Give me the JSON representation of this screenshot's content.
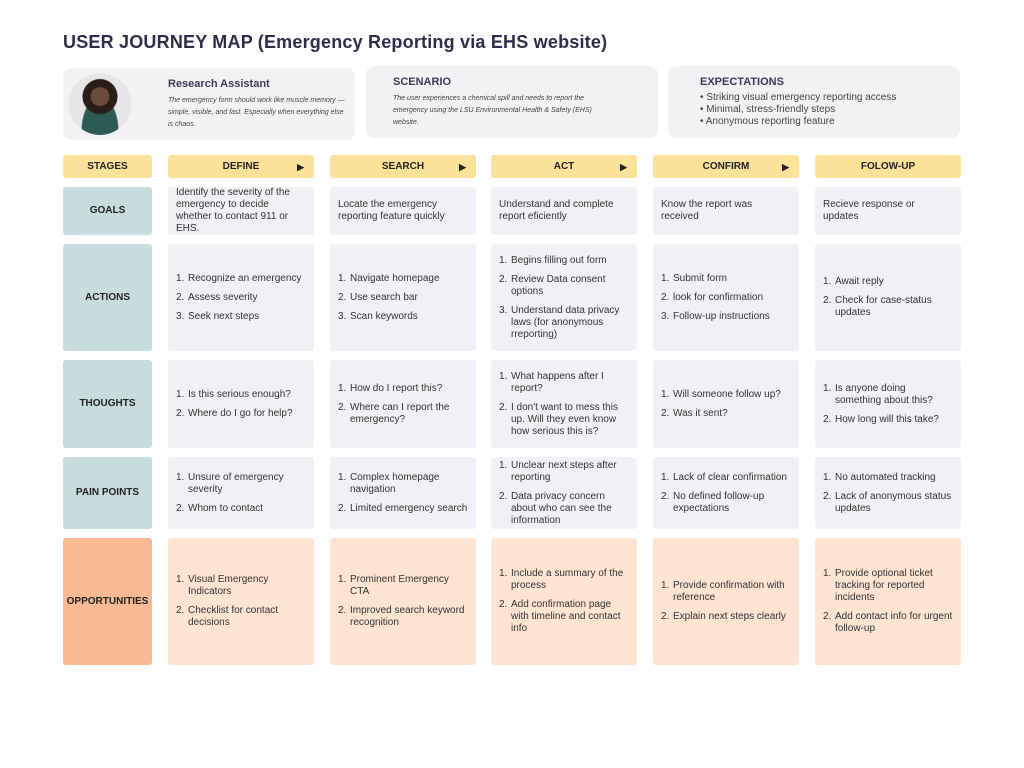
{
  "title": "USER JOURNEY MAP (Emergency Reporting via EHS website)",
  "persona": {
    "name": "Research Assistant",
    "quote": "The emergency form should work like muscle memory — simple, visible, and fast. Especially when everything else is chaos."
  },
  "scenario": {
    "heading": "SCENARIO",
    "text": "The user experiences a chemical spill and needs to report the emergency using the LSU Environmental Health & Safety (EHS) website."
  },
  "expectations": {
    "heading": "EXPECTATIONS",
    "items": [
      "Striking visual emergency reporting access",
      "Minimal, stress-friendly steps",
      "Anonymous reporting feature"
    ]
  },
  "stages_label": "STAGES",
  "stages": [
    {
      "label": "DEFINE",
      "arrow": true
    },
    {
      "label": "SEARCH",
      "arrow": true
    },
    {
      "label": "ACT",
      "arrow": true
    },
    {
      "label": "CONFIRM",
      "arrow": true
    },
    {
      "label": "FOLOW-UP",
      "arrow": false
    }
  ],
  "rows": [
    {
      "label": "GOALS",
      "type": "text",
      "cells": [
        "Identify the severity of the emergency to decide whether to contact 911 or EHS.",
        "Locate the emergency reporting feature quickly",
        "Understand and complete report eficiently",
        "Know the report was received",
        "Recieve response or updates"
      ]
    },
    {
      "label": "ACTIONS",
      "type": "list",
      "cells": [
        [
          "Recognize an emergency",
          "Assess severity",
          "Seek next steps"
        ],
        [
          "Navigate homepage",
          "Use search bar",
          "Scan keywords"
        ],
        [
          "Begins filling out form",
          "Review Data consent options",
          "Understand data privacy laws (for anonymous rreporting)"
        ],
        [
          "Submit form",
          "look for confirmation",
          "Follow-up instructions"
        ],
        [
          "Await reply",
          "Check for case-status updates"
        ]
      ]
    },
    {
      "label": "THOUGHTS",
      "type": "list",
      "cells": [
        [
          "Is this serious enough?",
          "Where do I go for help?"
        ],
        [
          "How do I report this?",
          "Where can I report the emergency?"
        ],
        [
          "What happens after I report?",
          "I don't want to mess this up. Will they even know how serious this is?"
        ],
        [
          "Will someone follow up?",
          "Was it sent?"
        ],
        [
          "Is anyone doing something about this?",
          "How long will this take?"
        ]
      ]
    },
    {
      "label": "PAIN POINTS",
      "type": "list",
      "cells": [
        [
          "Unsure of emergency severity",
          "Whom to contact"
        ],
        [
          "Complex homepage navigation",
          "Limited emergency search"
        ],
        [
          "Unclear next steps after reporting",
          "Data privacy concern about who can see the information"
        ],
        [
          "Lack of clear confirmation",
          "No defined follow-up expectations"
        ],
        [
          "No automated tracking",
          "Lack of anonymous status updates"
        ]
      ]
    },
    {
      "label": "OPPORTUNITIES",
      "type": "list",
      "opp": true,
      "cells": [
        [
          "Visual Emergency Indicators",
          "Checklist for contact decisions"
        ],
        [
          "Prominent Emergency CTA",
          "Improved search keyword recognition"
        ],
        [
          "Include a summary of the process",
          "Add confirmation page with timeline and contact info"
        ],
        [
          "Provide confirmation with reference",
          "Explain next steps clearly"
        ],
        [
          "Provide optional ticket tracking for reported incidents",
          "Add contact info for urgent follow-up"
        ]
      ]
    }
  ],
  "colors": {
    "stage": "#fbe29a",
    "label": "#c9dcdd",
    "cell": "#f0f1f4",
    "opp_label": "#f8b993",
    "opp_cell": "#fde3d2"
  }
}
